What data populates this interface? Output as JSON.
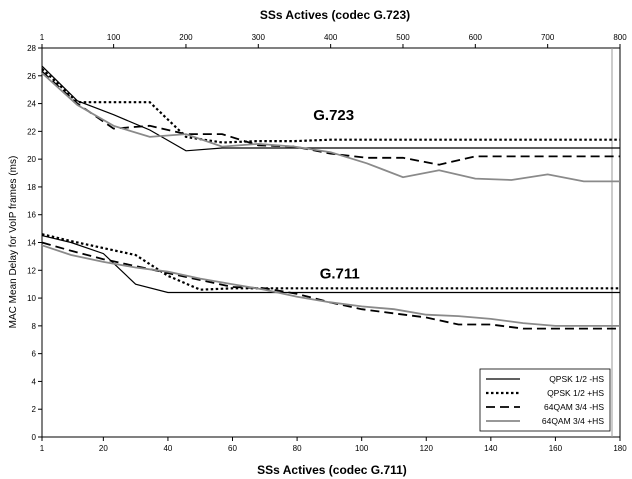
{
  "chart_data": {
    "type": "line",
    "top_axis": {
      "label": "SSs Actives (codec G.723)",
      "min": 1,
      "max": 800,
      "ticks": [
        1,
        100,
        200,
        300,
        400,
        500,
        600,
        700,
        800
      ]
    },
    "bottom_axis": {
      "label": "SSs Actives (codec G.711)",
      "min": 1,
      "max": 180,
      "ticks": [
        1,
        20,
        40,
        60,
        80,
        100,
        120,
        140,
        160,
        180
      ]
    },
    "y_axis": {
      "label": "MAC Mean Delay for VoIP frames (ms)",
      "min": 0,
      "max": 28,
      "ticks": [
        0,
        2,
        4,
        6,
        8,
        10,
        12,
        14,
        16,
        18,
        20,
        22,
        24,
        26,
        28
      ]
    },
    "annotations": [
      {
        "text": "G.723",
        "x_axis": "bottom",
        "x": 85,
        "y": 22.8
      },
      {
        "text": "G.711",
        "x_axis": "bottom",
        "x": 87,
        "y": 11.4
      }
    ],
    "legend": {
      "position": "bottom-right",
      "entries": [
        {
          "label": "QPSK 1/2 -HS",
          "style": "solid"
        },
        {
          "label": "QPSK 1/2 +HS",
          "style": "dotted"
        },
        {
          "label": "64QAM 3/4 -HS",
          "style": "dashed"
        },
        {
          "label": "64QAM 3/4 +HS",
          "style": "gray"
        }
      ]
    },
    "series": [
      {
        "group": "G.723",
        "legend_index": 0,
        "x_axis": "top",
        "x": [
          1,
          50,
          100,
          150,
          200,
          250,
          300,
          350,
          400,
          450,
          500,
          550,
          600,
          650,
          700,
          750,
          800
        ],
        "y": [
          26.7,
          24.2,
          23.2,
          22.1,
          20.6,
          20.8,
          20.8,
          20.8,
          20.8,
          20.8,
          20.8,
          20.8,
          20.8,
          20.8,
          20.8,
          20.8,
          20.8
        ]
      },
      {
        "group": "G.723",
        "legend_index": 1,
        "x_axis": "top",
        "x": [
          1,
          50,
          100,
          150,
          200,
          250,
          300,
          350,
          400,
          450,
          500,
          550,
          600,
          650,
          700,
          750,
          800
        ],
        "y": [
          26.5,
          24.1,
          24.1,
          24.1,
          21.6,
          21.2,
          21.3,
          21.3,
          21.4,
          21.4,
          21.4,
          21.4,
          21.4,
          21.4,
          21.4,
          21.4,
          21.4
        ]
      },
      {
        "group": "G.723",
        "legend_index": 2,
        "x_axis": "top",
        "x": [
          1,
          50,
          100,
          150,
          200,
          250,
          300,
          350,
          400,
          450,
          500,
          550,
          600,
          650,
          700,
          750,
          800
        ],
        "y": [
          26.3,
          24.0,
          22.2,
          22.4,
          21.8,
          21.8,
          21.0,
          20.9,
          20.4,
          20.1,
          20.1,
          19.6,
          20.2,
          20.2,
          20.2,
          20.2,
          20.2
        ]
      },
      {
        "group": "G.723",
        "legend_index": 3,
        "x_axis": "top",
        "x": [
          1,
          50,
          100,
          150,
          200,
          250,
          300,
          350,
          400,
          450,
          500,
          550,
          600,
          650,
          700,
          750,
          800
        ],
        "y": [
          26.2,
          23.9,
          22.4,
          21.6,
          21.8,
          20.9,
          21.1,
          20.9,
          20.5,
          19.7,
          18.7,
          19.2,
          18.6,
          18.5,
          18.9,
          18.4,
          18.4
        ]
      },
      {
        "group": "G.711",
        "legend_index": 0,
        "x_axis": "bottom",
        "x": [
          1,
          10,
          20,
          30,
          40,
          50,
          60,
          70,
          80,
          90,
          100,
          110,
          120,
          130,
          140,
          150,
          160,
          170,
          180
        ],
        "y": [
          14.5,
          14.0,
          13.2,
          11.0,
          10.4,
          10.4,
          10.4,
          10.4,
          10.4,
          10.4,
          10.4,
          10.4,
          10.4,
          10.4,
          10.4,
          10.4,
          10.4,
          10.4,
          10.4
        ]
      },
      {
        "group": "G.711",
        "legend_index": 1,
        "x_axis": "bottom",
        "x": [
          1,
          10,
          20,
          30,
          40,
          50,
          60,
          70,
          80,
          90,
          100,
          110,
          120,
          130,
          140,
          150,
          160,
          170,
          180
        ],
        "y": [
          14.6,
          14.1,
          13.6,
          13.1,
          11.6,
          10.6,
          10.7,
          10.7,
          10.7,
          10.7,
          10.7,
          10.7,
          10.7,
          10.7,
          10.7,
          10.7,
          10.7,
          10.7,
          10.7
        ]
      },
      {
        "group": "G.711",
        "legend_index": 2,
        "x_axis": "bottom",
        "x": [
          1,
          10,
          20,
          30,
          40,
          50,
          60,
          70,
          80,
          90,
          100,
          110,
          120,
          130,
          140,
          150,
          160,
          170,
          180
        ],
        "y": [
          14.0,
          13.4,
          12.8,
          12.3,
          11.8,
          11.3,
          10.8,
          10.7,
          10.3,
          9.7,
          9.2,
          8.9,
          8.6,
          8.1,
          8.1,
          7.8,
          7.8,
          7.8,
          7.8
        ]
      },
      {
        "group": "G.711",
        "legend_index": 3,
        "x_axis": "bottom",
        "x": [
          1,
          10,
          20,
          30,
          40,
          50,
          60,
          70,
          80,
          90,
          100,
          110,
          120,
          130,
          140,
          150,
          160,
          170,
          180
        ],
        "y": [
          13.8,
          13.1,
          12.6,
          12.2,
          11.9,
          11.4,
          11.0,
          10.6,
          10.1,
          9.7,
          9.4,
          9.2,
          8.8,
          8.7,
          8.5,
          8.2,
          8.0,
          8.0,
          8.0
        ]
      }
    ],
    "grid": false
  }
}
